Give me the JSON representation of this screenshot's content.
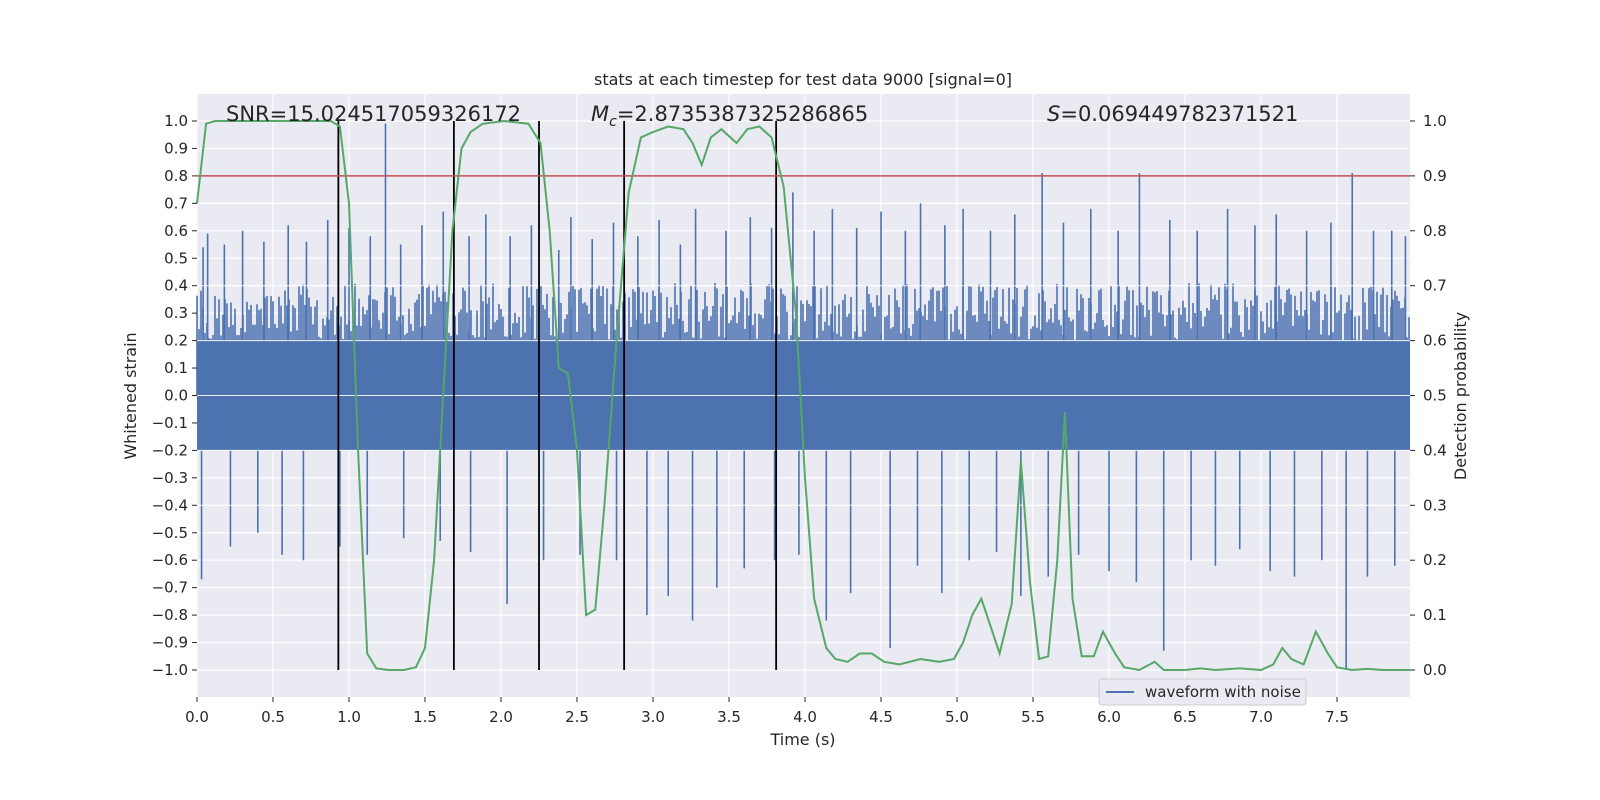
{
  "chart_data": {
    "type": "line",
    "title": "stats at each timestep for test data 9000 [signal=0]",
    "xlabel": "Time (s)",
    "ylabel_left": "Whitened strain",
    "ylabel_right": "Detection probability",
    "xlim": [
      0.0,
      8.0
    ],
    "ylim_left": [
      -1.1,
      1.1
    ],
    "ylim_right": [
      -0.05,
      1.05
    ],
    "x_ticks": [
      "0.0",
      "0.5",
      "1.0",
      "1.5",
      "2.0",
      "2.5",
      "3.0",
      "3.5",
      "4.0",
      "4.5",
      "5.0",
      "5.5",
      "6.0",
      "6.5",
      "7.0",
      "7.5"
    ],
    "y_left_ticks": [
      "1.0",
      "0.9",
      "0.8",
      "0.7",
      "0.6",
      "0.5",
      "0.4",
      "0.3",
      "0.2",
      "0.1",
      "0.0",
      "−0.1",
      "−0.2",
      "−0.3",
      "−0.4",
      "−0.5",
      "−0.6",
      "−0.7",
      "−0.8",
      "−0.9",
      "−1.0"
    ],
    "y_right_ticks": [
      "1.0",
      "0.9",
      "0.8",
      "0.7",
      "0.6",
      "0.5",
      "0.4",
      "0.3",
      "0.2",
      "0.1",
      "0.0"
    ],
    "grid": true,
    "annotations": {
      "snr": "SNR=15.024517059326172",
      "mc_symbol": "M",
      "mc_sub": "c",
      "mc_value": "=2.8735387325286865",
      "s_symbol": "S",
      "s_value": "=0.069449782371521"
    },
    "threshold": {
      "y": 0.8,
      "color": "#c44e52"
    },
    "vertical_lines": [
      0.93,
      1.69,
      2.25,
      2.81,
      3.81
    ],
    "waveform": {
      "name": "waveform with noise",
      "color": "#4c72b0",
      "band_upper": 0.2,
      "band_lower": -0.2,
      "typical_upper": 0.4,
      "typical_lower": -0.4,
      "peaks_upper": [
        [
          0.04,
          0.54
        ],
        [
          0.07,
          0.59
        ],
        [
          0.18,
          0.55
        ],
        [
          0.3,
          0.6
        ],
        [
          0.44,
          0.56
        ],
        [
          0.6,
          0.62
        ],
        [
          0.72,
          0.56
        ],
        [
          0.86,
          0.64
        ],
        [
          1.0,
          0.61
        ],
        [
          1.14,
          0.58
        ],
        [
          1.24,
          0.99
        ],
        [
          1.34,
          0.55
        ],
        [
          1.48,
          0.62
        ],
        [
          1.62,
          0.67
        ],
        [
          1.79,
          0.58
        ],
        [
          1.9,
          0.66
        ],
        [
          2.06,
          0.58
        ],
        [
          2.2,
          0.62
        ],
        [
          2.38,
          0.53
        ],
        [
          2.46,
          0.65
        ],
        [
          2.6,
          0.57
        ],
        [
          2.74,
          0.63
        ],
        [
          2.9,
          0.58
        ],
        [
          3.04,
          0.64
        ],
        [
          3.18,
          0.55
        ],
        [
          3.28,
          0.68
        ],
        [
          3.48,
          0.6
        ],
        [
          3.64,
          0.65
        ],
        [
          3.78,
          0.61
        ],
        [
          3.92,
          0.74
        ],
        [
          4.06,
          0.6
        ],
        [
          4.18,
          0.68
        ],
        [
          4.34,
          0.61
        ],
        [
          4.5,
          0.67
        ],
        [
          4.66,
          0.6
        ],
        [
          4.76,
          0.7
        ],
        [
          4.92,
          0.62
        ],
        [
          5.04,
          0.68
        ],
        [
          5.22,
          0.6
        ],
        [
          5.38,
          0.66
        ],
        [
          5.56,
          0.81
        ],
        [
          5.7,
          0.63
        ],
        [
          5.88,
          0.68
        ],
        [
          6.06,
          0.6
        ],
        [
          6.2,
          0.81
        ],
        [
          6.4,
          0.64
        ],
        [
          6.58,
          0.6
        ],
        [
          6.78,
          0.68
        ],
        [
          6.96,
          0.62
        ],
        [
          7.1,
          0.66
        ],
        [
          7.3,
          0.6
        ],
        [
          7.46,
          0.63
        ],
        [
          7.6,
          0.81
        ],
        [
          7.74,
          0.6
        ],
        [
          7.86,
          0.6
        ],
        [
          7.95,
          0.58
        ]
      ],
      "peaks_lower": [
        [
          0.03,
          -0.67
        ],
        [
          0.22,
          -0.55
        ],
        [
          0.4,
          -0.5
        ],
        [
          0.56,
          -0.58
        ],
        [
          0.7,
          -0.6
        ],
        [
          0.94,
          -0.55
        ],
        [
          1.12,
          -0.58
        ],
        [
          1.36,
          -0.52
        ],
        [
          1.6,
          -0.53
        ],
        [
          1.8,
          -0.57
        ],
        [
          2.04,
          -0.76
        ],
        [
          2.28,
          -0.6
        ],
        [
          2.52,
          -0.58
        ],
        [
          2.76,
          -0.6
        ],
        [
          2.96,
          -0.8
        ],
        [
          3.1,
          -0.73
        ],
        [
          3.26,
          -0.82
        ],
        [
          3.42,
          -0.7
        ],
        [
          3.6,
          -0.63
        ],
        [
          3.8,
          -0.6
        ],
        [
          3.96,
          -0.58
        ],
        [
          4.14,
          -0.82
        ],
        [
          4.3,
          -0.72
        ],
        [
          4.56,
          -0.92
        ],
        [
          4.74,
          -0.62
        ],
        [
          4.9,
          -0.72
        ],
        [
          5.08,
          -0.6
        ],
        [
          5.26,
          -0.57
        ],
        [
          5.42,
          -0.73
        ],
        [
          5.6,
          -0.66
        ],
        [
          5.8,
          -0.58
        ],
        [
          6.0,
          -0.64
        ],
        [
          6.18,
          -0.68
        ],
        [
          6.36,
          -0.93
        ],
        [
          6.54,
          -0.6
        ],
        [
          6.7,
          -0.62
        ],
        [
          6.86,
          -0.56
        ],
        [
          7.06,
          -0.64
        ],
        [
          7.22,
          -0.66
        ],
        [
          7.4,
          -0.6
        ],
        [
          7.56,
          -1.0
        ],
        [
          7.7,
          -0.66
        ],
        [
          7.88,
          -0.62
        ]
      ]
    },
    "detection_probability": {
      "color": "#55a868",
      "points": [
        [
          0.0,
          0.85
        ],
        [
          0.06,
          0.995
        ],
        [
          0.12,
          1.0
        ],
        [
          0.5,
          1.0
        ],
        [
          0.88,
          1.0
        ],
        [
          0.94,
          0.99
        ],
        [
          1.0,
          0.85
        ],
        [
          1.06,
          0.4
        ],
        [
          1.12,
          0.03
        ],
        [
          1.18,
          0.003
        ],
        [
          1.26,
          0.0
        ],
        [
          1.36,
          0.0
        ],
        [
          1.44,
          0.005
        ],
        [
          1.5,
          0.04
        ],
        [
          1.56,
          0.2
        ],
        [
          1.62,
          0.5
        ],
        [
          1.68,
          0.8
        ],
        [
          1.74,
          0.95
        ],
        [
          1.8,
          0.98
        ],
        [
          1.88,
          0.995
        ],
        [
          2.02,
          1.0
        ],
        [
          2.18,
          0.995
        ],
        [
          2.26,
          0.96
        ],
        [
          2.32,
          0.8
        ],
        [
          2.38,
          0.55
        ],
        [
          2.44,
          0.54
        ],
        [
          2.5,
          0.4
        ],
        [
          2.56,
          0.1
        ],
        [
          2.62,
          0.11
        ],
        [
          2.68,
          0.3
        ],
        [
          2.76,
          0.6
        ],
        [
          2.84,
          0.87
        ],
        [
          2.92,
          0.97
        ],
        [
          3.0,
          0.98
        ],
        [
          3.1,
          0.99
        ],
        [
          3.2,
          0.985
        ],
        [
          3.26,
          0.96
        ],
        [
          3.32,
          0.92
        ],
        [
          3.38,
          0.97
        ],
        [
          3.45,
          0.985
        ],
        [
          3.55,
          0.96
        ],
        [
          3.62,
          0.985
        ],
        [
          3.7,
          0.99
        ],
        [
          3.78,
          0.97
        ],
        [
          3.86,
          0.88
        ],
        [
          3.94,
          0.65
        ],
        [
          4.0,
          0.35
        ],
        [
          4.06,
          0.13
        ],
        [
          4.14,
          0.04
        ],
        [
          4.2,
          0.02
        ],
        [
          4.28,
          0.015
        ],
        [
          4.36,
          0.03
        ],
        [
          4.44,
          0.03
        ],
        [
          4.52,
          0.015
        ],
        [
          4.62,
          0.01
        ],
        [
          4.76,
          0.02
        ],
        [
          4.88,
          0.015
        ],
        [
          4.98,
          0.02
        ],
        [
          5.04,
          0.05
        ],
        [
          5.1,
          0.1
        ],
        [
          5.16,
          0.13
        ],
        [
          5.22,
          0.08
        ],
        [
          5.28,
          0.03
        ],
        [
          5.36,
          0.12
        ],
        [
          5.42,
          0.38
        ],
        [
          5.48,
          0.16
        ],
        [
          5.54,
          0.02
        ],
        [
          5.6,
          0.025
        ],
        [
          5.66,
          0.2
        ],
        [
          5.71,
          0.47
        ],
        [
          5.76,
          0.13
        ],
        [
          5.82,
          0.025
        ],
        [
          5.9,
          0.025
        ],
        [
          5.96,
          0.07
        ],
        [
          6.04,
          0.03
        ],
        [
          6.1,
          0.005
        ],
        [
          6.2,
          0.0
        ],
        [
          6.3,
          0.015
        ],
        [
          6.36,
          0.0
        ],
        [
          6.5,
          0.0
        ],
        [
          6.6,
          0.003
        ],
        [
          6.7,
          0.0
        ],
        [
          6.86,
          0.003
        ],
        [
          7.0,
          0.0
        ],
        [
          7.08,
          0.01
        ],
        [
          7.14,
          0.04
        ],
        [
          7.2,
          0.02
        ],
        [
          7.28,
          0.01
        ],
        [
          7.36,
          0.07
        ],
        [
          7.44,
          0.03
        ],
        [
          7.5,
          0.005
        ],
        [
          7.6,
          0.0
        ],
        [
          7.7,
          0.002
        ],
        [
          7.8,
          0.0
        ],
        [
          7.98,
          0.0
        ]
      ]
    },
    "legend": {
      "location": "lower-right",
      "entries": [
        "waveform with noise"
      ]
    },
    "colors": {
      "background": "#eaeaf2",
      "grid": "#ffffff",
      "vline": "#000000"
    }
  }
}
